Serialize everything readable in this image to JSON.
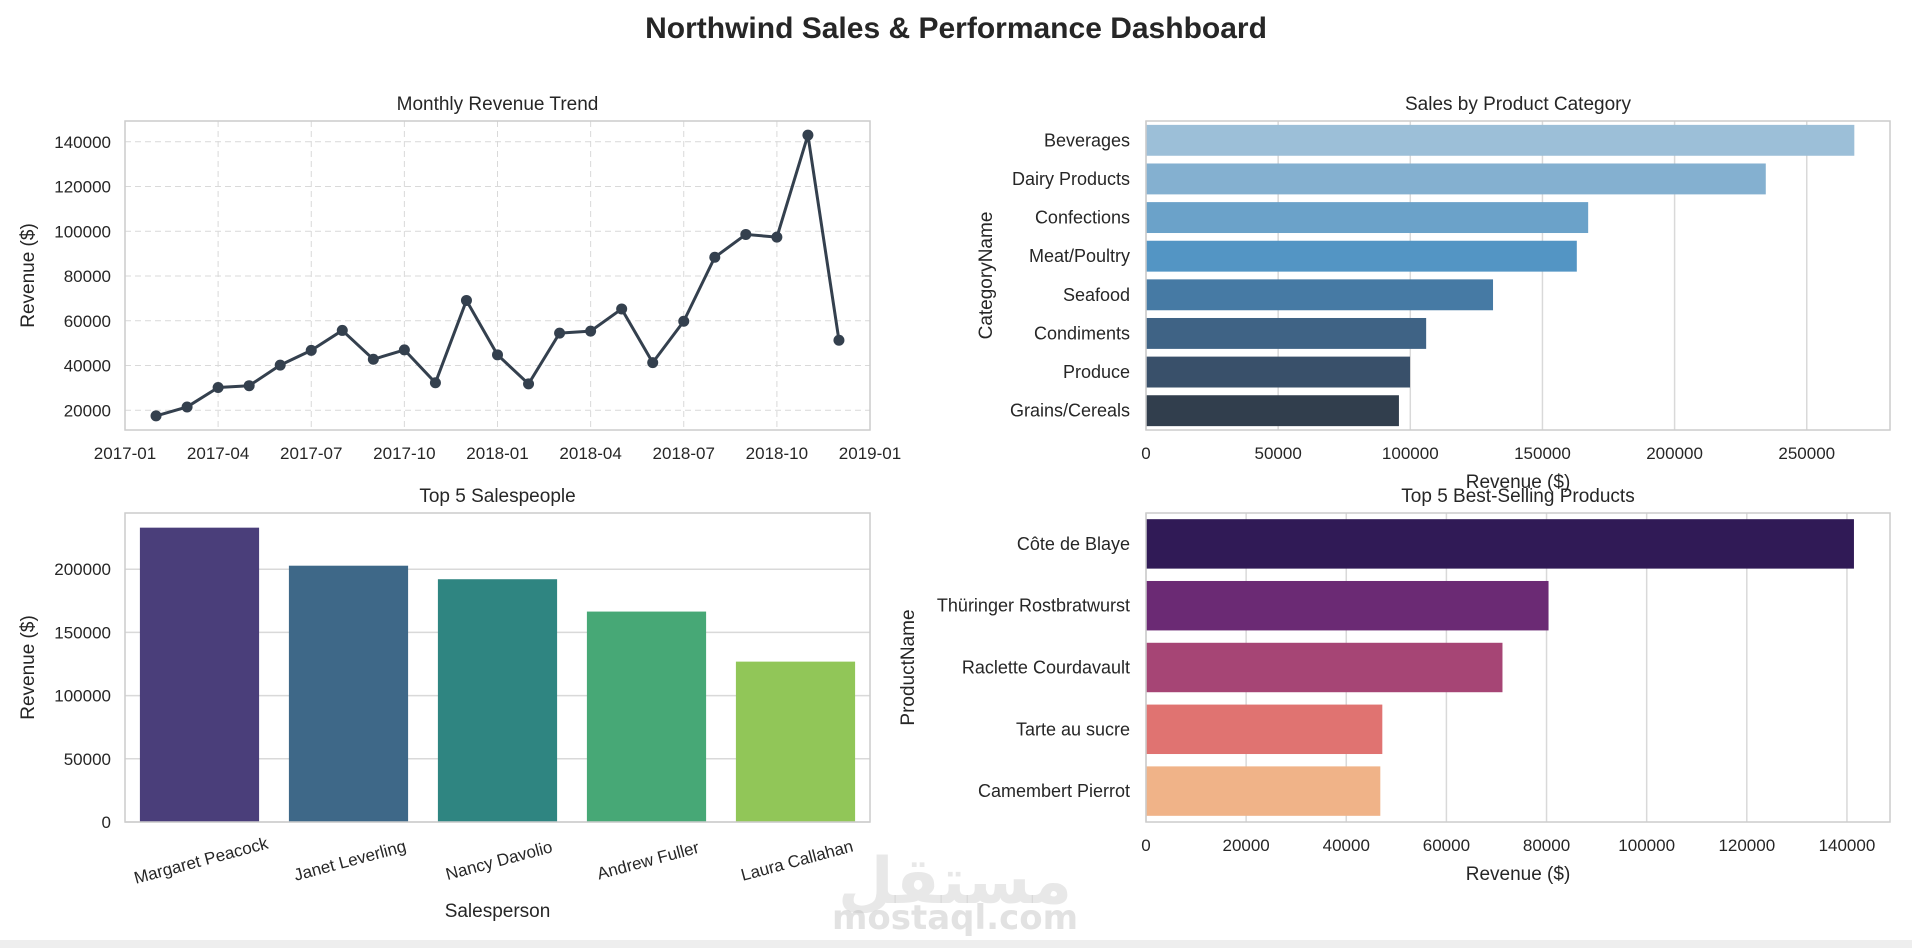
{
  "dashboard": {
    "title": "Northwind Sales & Performance Dashboard"
  },
  "watermark": {
    "arabic": "مستقل",
    "latin": "mostaql.com"
  },
  "chart_data": [
    {
      "id": "monthly",
      "type": "line",
      "title": "Monthly Revenue Trend",
      "xlabel": "",
      "ylabel": "Revenue ($)",
      "x": [
        "2017-02",
        "2017-03",
        "2017-04",
        "2017-05",
        "2017-06",
        "2017-07",
        "2017-08",
        "2017-09",
        "2017-10",
        "2017-11",
        "2017-12",
        "2018-01",
        "2018-02",
        "2018-03",
        "2018-04",
        "2018-05",
        "2018-06",
        "2018-07",
        "2018-08",
        "2018-09",
        "2018-10",
        "2018-11",
        "2018-12"
      ],
      "values": [
        17500,
        21500,
        30200,
        31000,
        40200,
        46800,
        55700,
        42800,
        47000,
        32300,
        69100,
        44800,
        31800,
        54500,
        55400,
        65300,
        41300,
        59800,
        88400,
        98600,
        97400,
        143000,
        51300
      ],
      "xticks": [
        "2017-01",
        "2017-04",
        "2017-07",
        "2017-10",
        "2018-01",
        "2018-04",
        "2018-07",
        "2018-10",
        "2019-01"
      ],
      "yticks": [
        20000,
        40000,
        60000,
        80000,
        100000,
        120000,
        140000
      ],
      "xlim": [
        "2017-01",
        "2019-01"
      ],
      "ylim": [
        11200,
        149300
      ],
      "grid": true,
      "color": "#34404e"
    },
    {
      "id": "category",
      "type": "bar",
      "orientation": "horizontal",
      "title": "Sales by Product Category",
      "xlabel": "Revenue ($)",
      "ylabel": "CategoryName",
      "categories": [
        "Beverages",
        "Dairy Products",
        "Confections",
        "Meat/Poultry",
        "Seafood",
        "Condiments",
        "Produce",
        "Grains/Cereals"
      ],
      "values": [
        268000,
        234500,
        167300,
        163000,
        131300,
        106000,
        99900,
        95700
      ],
      "xticks": [
        0,
        50000,
        100000,
        150000,
        200000,
        250000
      ],
      "xlim": [
        0,
        281500
      ],
      "colors": [
        "#9cbfd8",
        "#84b0d0",
        "#6ba2c9",
        "#5395c4",
        "#467aa4",
        "#3f6385",
        "#39506a",
        "#313e4d"
      ],
      "grid": true
    },
    {
      "id": "salespeople",
      "type": "bar",
      "orientation": "vertical",
      "title": "Top 5 Salespeople",
      "xlabel": "Salesperson",
      "ylabel": "Revenue ($)",
      "categories": [
        "Margaret Peacock",
        "Janet Leverling",
        "Nancy Davolio",
        "Andrew Fuller",
        "Laura Callahan"
      ],
      "values": [
        232900,
        202800,
        192100,
        166500,
        126900
      ],
      "yticks": [
        0,
        50000,
        100000,
        150000,
        200000
      ],
      "ylim": [
        0,
        244500
      ],
      "colors": [
        "#4a3e7a",
        "#3e6888",
        "#2f8581",
        "#47a876",
        "#91c658"
      ],
      "grid": true
    },
    {
      "id": "products",
      "type": "bar",
      "orientation": "horizontal",
      "title": "Top 5 Best-Selling Products",
      "xlabel": "Revenue ($)",
      "ylabel": "ProductName",
      "categories": [
        "Côte de Blaye",
        "Thüringer Rostbratwurst",
        "Raclette Courdavault",
        "Tarte au sucre",
        "Camembert Pierrot"
      ],
      "values": [
        141400,
        80400,
        71200,
        47200,
        46800
      ],
      "xticks": [
        0,
        20000,
        40000,
        60000,
        80000,
        100000,
        120000,
        140000
      ],
      "xlim": [
        0,
        148600
      ],
      "colors": [
        "#301a56",
        "#6b2a74",
        "#a64575",
        "#e07371",
        "#f0b388"
      ],
      "grid": true
    }
  ]
}
